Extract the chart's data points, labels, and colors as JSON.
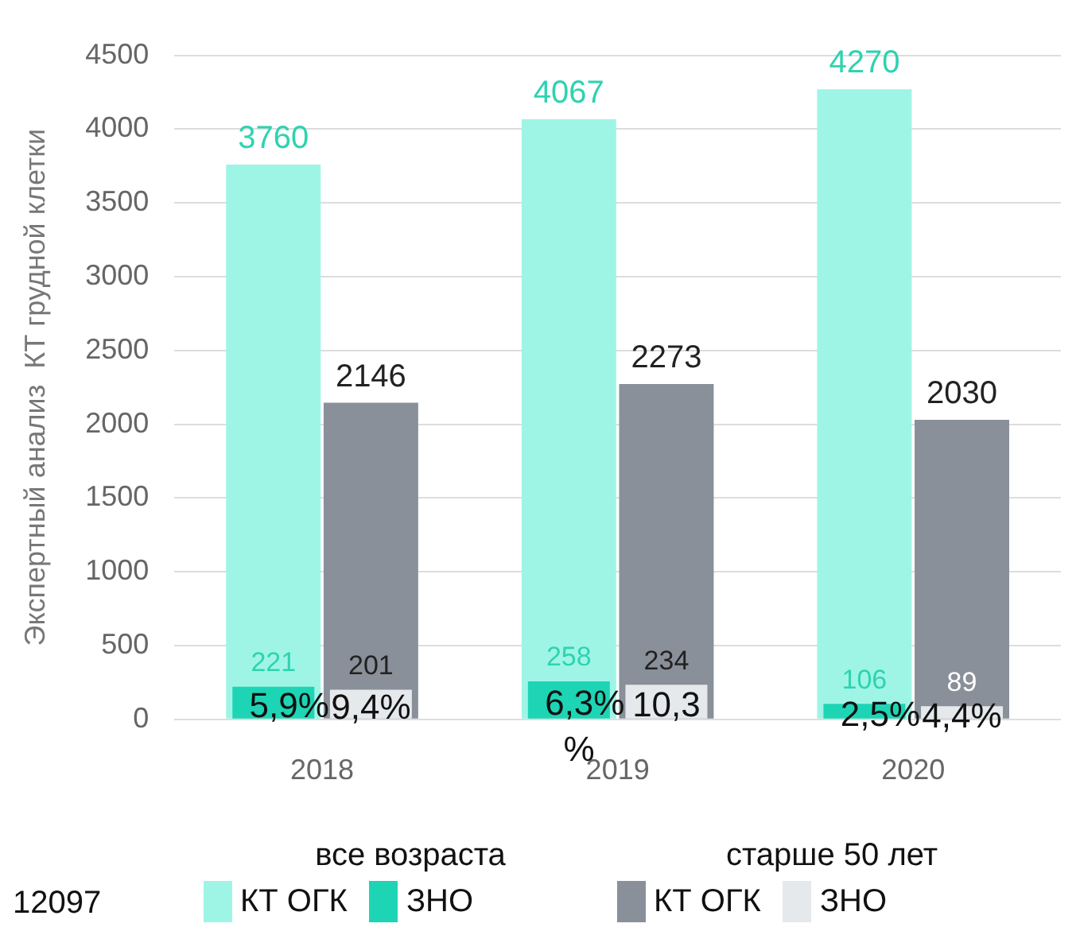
{
  "chart_data": {
    "type": "bar",
    "ylabel": "Экспертный анализ  КТ грудной клетки",
    "categories": [
      "2018",
      "2019",
      "2020"
    ],
    "series": [
      {
        "name": "КТ ОГК",
        "color": "#9ef5e6",
        "values": [
          3760,
          4067,
          4270
        ]
      },
      {
        "name": "ЗНО",
        "color": "#1dd5b5",
        "values": [
          221,
          258,
          106
        ]
      },
      {
        "name": "КТ ОГК",
        "color": "#8a9099",
        "values": [
          2146,
          2273,
          2030
        ]
      },
      {
        "name": "ЗНО",
        "color": "#e6e9ec",
        "values": [
          201,
          234,
          89
        ]
      }
    ],
    "ylim": [
      0,
      4500
    ],
    "yticks": [
      0,
      500,
      1000,
      1500,
      2000,
      2500,
      3000,
      3500,
      4000,
      4500
    ],
    "grid": "y",
    "legend": "bottom",
    "data_labels": true,
    "annotations": [
      "12097",
      "все возраста",
      "старше 50 лет",
      {
        "text": "5,9%",
        "x": "2018",
        "y": 221
      },
      {
        "text": "9,4%",
        "x": "2018",
        "y": 201
      },
      {
        "text": "6,3%",
        "x": "2019",
        "y": 258
      },
      {
        "text": "10,3 %",
        "x": "2019",
        "y": 234
      },
      {
        "text": "2,5%",
        "x": "2020",
        "y": 106
      },
      {
        "text": "4,4%",
        "x": "2020",
        "y": 89
      }
    ]
  }
}
